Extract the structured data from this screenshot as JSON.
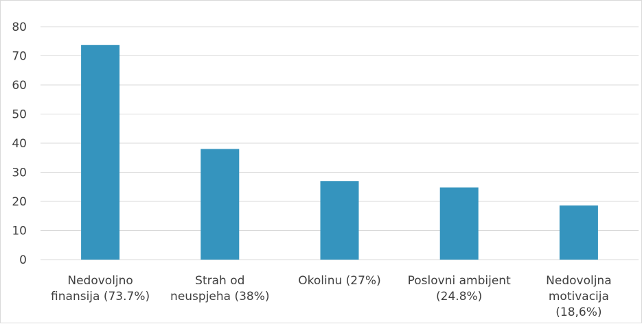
{
  "chart_data": {
    "type": "bar",
    "title": "",
    "xlabel": "",
    "ylabel": "",
    "categories": [
      [
        "Nedovoljno",
        "finansija (73.7%)"
      ],
      [
        "Strah od",
        "neuspjeha (38%)"
      ],
      [
        "Okolinu (27%)"
      ],
      [
        "Poslovni ambijent",
        "(24.8%)"
      ],
      [
        "Nedovoljna",
        "motivacija",
        "(18,6%)"
      ]
    ],
    "values": [
      73.7,
      38,
      27,
      24.8,
      18.6
    ],
    "ylim": [
      0,
      80
    ],
    "yticks": [
      "0",
      "10",
      "20",
      "30",
      "40",
      "50",
      "60",
      "70",
      "80"
    ],
    "grid": true,
    "legend": "none",
    "bar_color": "#3594be",
    "grid_color": "#d9d9d9"
  }
}
